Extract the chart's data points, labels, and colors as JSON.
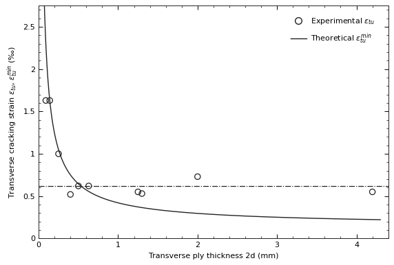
{
  "experimental_x": [
    0.09,
    0.14,
    0.25,
    0.4,
    0.5,
    0.63,
    1.25,
    1.3,
    2.0,
    4.2
  ],
  "experimental_y": [
    1.63,
    1.63,
    1.0,
    0.52,
    0.62,
    0.62,
    0.55,
    0.53,
    0.73,
    0.55
  ],
  "horizontal_line_y": 0.62,
  "xlim": [
    0,
    4.4
  ],
  "ylim": [
    0,
    2.75
  ],
  "xticks": [
    0,
    1,
    2,
    3,
    4
  ],
  "yticks": [
    0.0,
    0.5,
    1.0,
    1.5,
    2.0,
    2.5
  ],
  "xlabel": "Transverse ply thickness 2d (mm)",
  "curve_x_start": 0.05,
  "curve_x_end": 4.3,
  "curve_asymptote": 0.14,
  "curve_scale": 0.28,
  "curve_decay": 0.85,
  "background_color": "#ffffff",
  "line_color": "#222222",
  "marker_color": "#222222"
}
